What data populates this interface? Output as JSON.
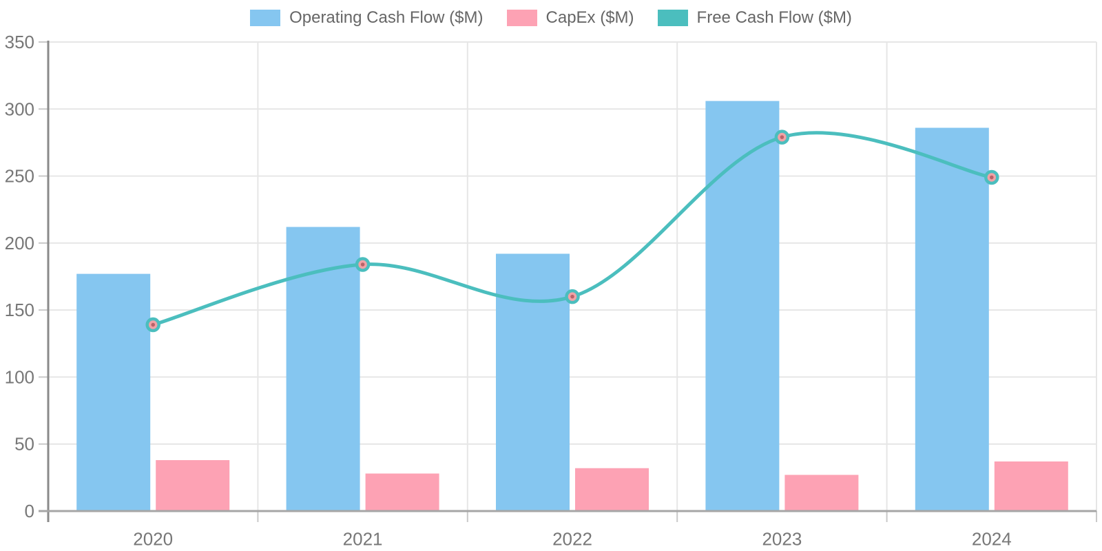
{
  "chart_data": {
    "type": "combo-bar-line",
    "categories": [
      "2020",
      "2021",
      "2022",
      "2023",
      "2024"
    ],
    "series": [
      {
        "name": "Operating Cash Flow ($M)",
        "type": "bar",
        "color": "#85C6F0",
        "values": [
          177,
          212,
          192,
          306,
          286
        ]
      },
      {
        "name": "CapEx ($M)",
        "type": "bar",
        "color": "#FDA2B4",
        "values": [
          38,
          28,
          32,
          27,
          37
        ]
      },
      {
        "name": "Free Cash Flow ($M)",
        "type": "line",
        "color": "#4BBEBE",
        "marker_fill": "#F1A2A6",
        "marker_dot": "#B96368",
        "values": [
          139,
          184,
          160,
          279,
          249
        ]
      }
    ],
    "title": "",
    "xlabel": "",
    "ylabel": "",
    "ylim": [
      0,
      350
    ],
    "yticks": [
      0,
      50,
      100,
      150,
      200,
      250,
      300,
      350
    ],
    "grid": true,
    "legend_position": "top",
    "line_smooth": true
  },
  "style_colors": {
    "grid": "#E6E6E6",
    "axis_y": "#8A8A8A",
    "axis_baseline": "#A6A6A6",
    "tick_mark": "#C9C9C9",
    "tick_text": "#777777",
    "legend_text": "#666666",
    "background": "#FFFFFF"
  }
}
